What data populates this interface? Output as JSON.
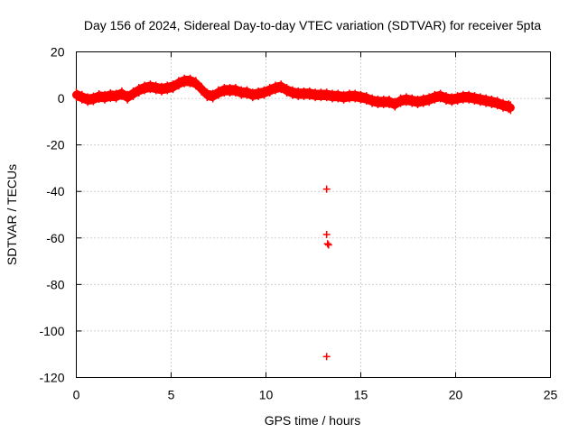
{
  "chart_data": {
    "type": "scatter",
    "title": "Day 156 of 2024, Sidereal Day-to-day VTEC variation (SDTVAR) for receiver 5pta",
    "xlabel": "GPS time / hours",
    "ylabel": "SDTVAR / TECUs",
    "xlim": [
      0,
      25
    ],
    "ylim": [
      -120,
      20
    ],
    "xticks": [
      0,
      5,
      10,
      15,
      20,
      25
    ],
    "yticks": [
      -120,
      -100,
      -80,
      -60,
      -40,
      -20,
      0,
      20
    ],
    "grid": true,
    "marker": "plus",
    "series": [
      {
        "name": "SDTVAR",
        "color": "#ff0000",
        "dense_band": [
          [
            0.0,
            1.5
          ],
          [
            0.3,
            0.5
          ],
          [
            0.6,
            -0.5
          ],
          [
            0.9,
            -0.2
          ],
          [
            1.2,
            0.8
          ],
          [
            1.5,
            0.5
          ],
          [
            1.8,
            1.2
          ],
          [
            2.1,
            1.0
          ],
          [
            2.4,
            2.0
          ],
          [
            2.7,
            0.5
          ],
          [
            3.0,
            2.0
          ],
          [
            3.3,
            3.5
          ],
          [
            3.6,
            4.5
          ],
          [
            3.9,
            5.0
          ],
          [
            4.2,
            4.5
          ],
          [
            4.5,
            4.0
          ],
          [
            4.8,
            4.5
          ],
          [
            5.1,
            5.0
          ],
          [
            5.4,
            6.5
          ],
          [
            5.7,
            7.5
          ],
          [
            6.0,
            7.5
          ],
          [
            6.3,
            6.5
          ],
          [
            6.6,
            4.0
          ],
          [
            6.9,
            1.5
          ],
          [
            7.2,
            1.0
          ],
          [
            7.5,
            2.5
          ],
          [
            7.8,
            3.5
          ],
          [
            8.1,
            3.5
          ],
          [
            8.4,
            3.5
          ],
          [
            8.7,
            2.5
          ],
          [
            9.0,
            2.5
          ],
          [
            9.3,
            1.5
          ],
          [
            9.6,
            2.0
          ],
          [
            9.9,
            2.5
          ],
          [
            10.2,
            3.5
          ],
          [
            10.5,
            4.5
          ],
          [
            10.8,
            5.0
          ],
          [
            11.1,
            3.5
          ],
          [
            11.4,
            2.5
          ],
          [
            11.7,
            2.0
          ],
          [
            12.0,
            2.0
          ],
          [
            12.3,
            2.0
          ],
          [
            12.6,
            1.5
          ],
          [
            12.9,
            1.5
          ],
          [
            13.2,
            1.5
          ],
          [
            13.5,
            1.0
          ],
          [
            13.8,
            1.0
          ],
          [
            14.1,
            0.5
          ],
          [
            14.4,
            1.0
          ],
          [
            14.7,
            1.0
          ],
          [
            15.0,
            0.5
          ],
          [
            15.3,
            0.0
          ],
          [
            15.6,
            -1.0
          ],
          [
            15.9,
            -1.5
          ],
          [
            16.2,
            -1.5
          ],
          [
            16.5,
            -1.5
          ],
          [
            16.8,
            -2.5
          ],
          [
            17.1,
            -1.0
          ],
          [
            17.4,
            -0.5
          ],
          [
            17.7,
            -1.0
          ],
          [
            18.0,
            -1.5
          ],
          [
            18.3,
            -1.0
          ],
          [
            18.6,
            -0.5
          ],
          [
            18.9,
            0.5
          ],
          [
            19.2,
            1.0
          ],
          [
            19.5,
            0.0
          ],
          [
            19.8,
            -0.5
          ],
          [
            20.1,
            0.0
          ],
          [
            20.4,
            0.5
          ],
          [
            20.7,
            0.5
          ],
          [
            21.0,
            0.0
          ],
          [
            21.3,
            -0.5
          ],
          [
            21.6,
            -1.0
          ],
          [
            21.9,
            -1.5
          ],
          [
            22.2,
            -2.0
          ],
          [
            22.5,
            -3.0
          ],
          [
            22.8,
            -3.5
          ],
          [
            22.9,
            -4.0
          ]
        ],
        "outliers": [
          [
            13.2,
            -39
          ],
          [
            13.2,
            -58.5
          ],
          [
            13.25,
            -62.5
          ],
          [
            13.3,
            -63
          ],
          [
            13.2,
            -111
          ]
        ]
      }
    ]
  }
}
